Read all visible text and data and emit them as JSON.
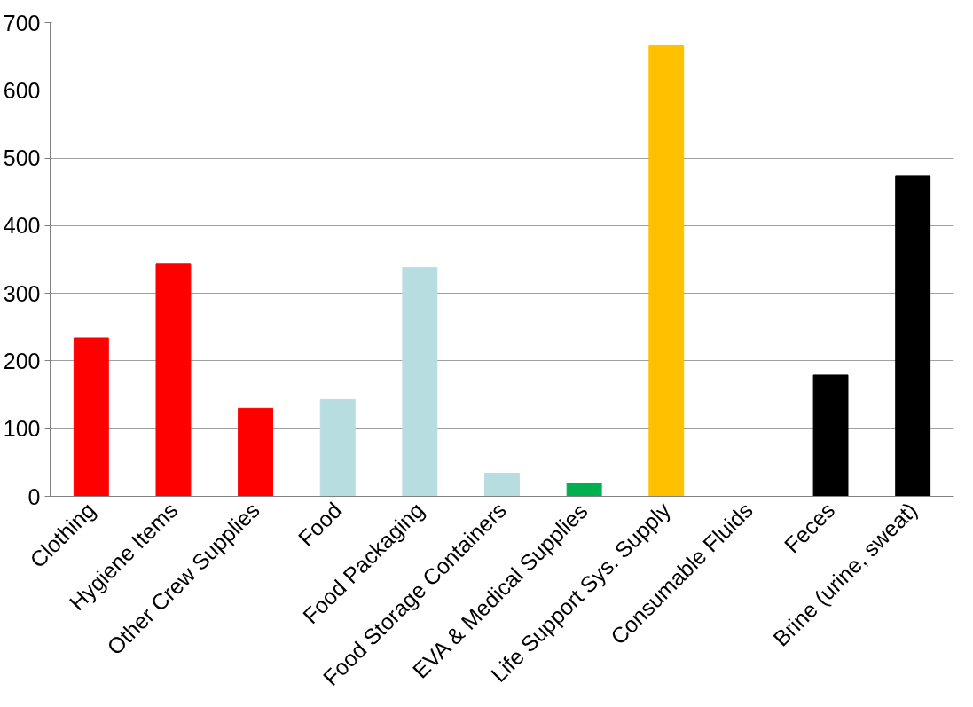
{
  "chart_data": {
    "type": "bar",
    "categories": [
      "Clothing",
      "Hygiene Items",
      "Other Crew Supplies",
      "Food",
      "Food Packaging",
      "Food Storage Containers",
      "EVA & Medical Supplies",
      "Life Support Sys. Supply",
      "Consumable Fluids",
      "Feces",
      "Brine (urine, sweat)"
    ],
    "values": [
      234,
      343,
      130,
      143,
      338,
      34,
      19,
      666,
      0,
      179,
      474
    ],
    "colors": [
      "#ff0000",
      "#ff0000",
      "#ff0000",
      "#b7dde1",
      "#b7dde1",
      "#b7dde1",
      "#00b050",
      "#ffc000",
      "#000000",
      "#000000",
      "#000000"
    ],
    "ylim": [
      0,
      700
    ],
    "yticks": [
      0,
      100,
      200,
      300,
      400,
      500,
      600,
      700
    ],
    "grid": "y"
  }
}
